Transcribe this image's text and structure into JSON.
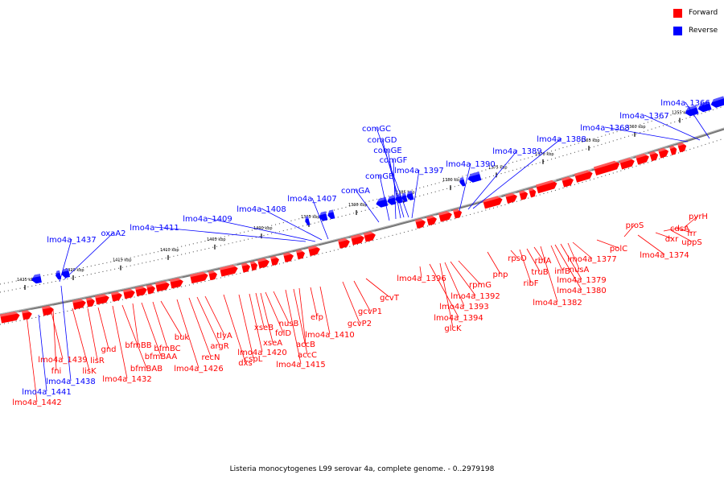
{
  "colors": {
    "forward": "#ff0000",
    "reverse": "#0000ff",
    "backbone": "#888888"
  },
  "legend": [
    {
      "label": "Forward",
      "color": "#ff0000"
    },
    {
      "label": "Reverse",
      "color": "#0000ff"
    }
  ],
  "caption": "Listeria monocytogenes L99 serovar 4a, complete genome. - 0..2979198",
  "ticks": [
    "1425 kbp",
    "1420 kbp",
    "1415 kbp",
    "1410 kbp",
    "1405 kbp",
    "1400 kbp",
    "1395 kbp",
    "1390 kbp",
    "1385 kbp",
    "1380 kbp",
    "1375 kbp",
    "1370 kbp",
    "1365 kbp",
    "1360 kbp",
    "1355 kbp"
  ],
  "forward_labels": [
    "lmo4a_1442",
    "lmo4a_1439",
    "fni",
    "lisK",
    "lisR",
    "gnd",
    "lmo4a_1432",
    "bfmBAB",
    "bfmBB",
    "bfmBAA",
    "bfmBC",
    "buk",
    "lmo4a_1426",
    "recN",
    "argR",
    "tlyA",
    "dxs",
    "cspL",
    "lmo4a_1420",
    "xseB",
    "xseA",
    "folD",
    "nusB",
    "lmo4a_1415",
    "accC",
    "accB",
    "efp",
    "lmo4a_1410",
    "gcvP2",
    "gcvP1",
    "gcvT",
    "lmo4a_1396",
    "lmo4a_1394",
    "glcK",
    "lmo4a_1393",
    "lmo4a_1392",
    "rpmG",
    "pnp",
    "rpsO",
    "ribF",
    "truB",
    "rbfA",
    "lmo4a_1382",
    "infB",
    "lmo4a_1380",
    "lmo4a_1379",
    "nusA",
    "lmo4a_1377",
    "polC",
    "proS",
    "lmo4a_1374",
    "dxr",
    "cdsA",
    "uppS",
    "frr",
    "pyrH"
  ],
  "reverse_labels": [
    "lmo4a_1441",
    "lmo4a_1438",
    "lmo4a_1437",
    "oxaA2",
    "lmo4a_1411",
    "lmo4a_1409",
    "lmo4a_1408",
    "lmo4a_1407",
    "comGA",
    "comGB",
    "comGF",
    "comGE",
    "comGD",
    "comGC",
    "lmo4a_1397",
    "lmo4a_1390",
    "lmo4a_1389",
    "lmo4a_1388",
    "lmo4a_1368",
    "lmo4a_1367",
    "lmo4a_1366"
  ]
}
